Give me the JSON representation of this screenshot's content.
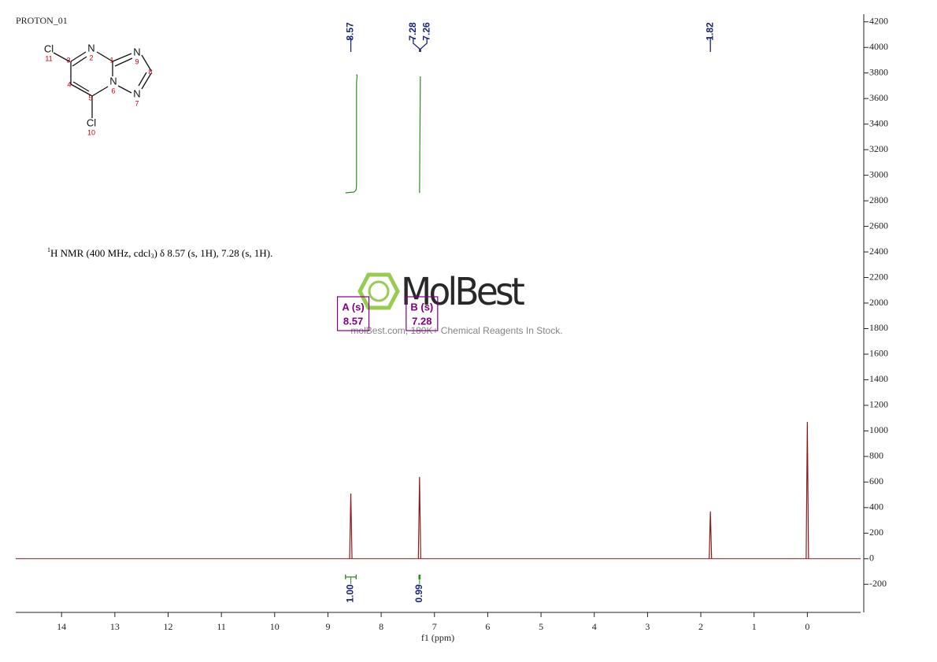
{
  "chart_data": {
    "type": "nmr",
    "title": "PROTON_01",
    "xlabel": "f1 (ppm)",
    "xlim": [
      14.86,
      -1.0
    ],
    "xticks": [
      14,
      13,
      12,
      11,
      10,
      9,
      8,
      7,
      6,
      5,
      4,
      3,
      2,
      1,
      0
    ],
    "ylim": [
      -420,
      4260
    ],
    "yticks": [
      4200,
      4000,
      3800,
      3600,
      3400,
      3200,
      3000,
      2800,
      2600,
      2400,
      2200,
      2000,
      1800,
      1600,
      1400,
      1200,
      1000,
      800,
      600,
      400,
      200,
      0,
      -200
    ],
    "color": "#8b1a1a",
    "peaks": {
      "x": [
        8.57,
        7.28,
        1.82,
        0
      ],
      "values": [
        510,
        640,
        370,
        1070
      ]
    },
    "peak_picks": [
      8.57,
      7.28,
      7.26,
      1.82
    ],
    "integrals": [
      {
        "from": 8.67,
        "to": 8.47,
        "value": 1,
        "label": "1.00"
      },
      {
        "from": 7.29,
        "to": 7.27,
        "value": 0.99
      }
    ],
    "multiplets": [
      {
        "name": "A (s)",
        "shift": 8.57
      },
      {
        "name": "B (s)",
        "shift": 7.28
      }
    ],
    "description": {
      "sup": "1",
      "text1": "H NMR (400 MHz, cdcl",
      "sub": "3",
      "text2": ") δ 8.57 (s, 1H), 7.28 (s, 1H)."
    },
    "watermark": {
      "logo": "MolBest",
      "tagline": "molBest.com, 180K+ Chemical Reagents In Stock."
    }
  },
  "structure": {
    "atoms": [
      {
        "symbol": "Cl",
        "number": 11
      },
      {
        "number": 3
      },
      {
        "symbol": "N",
        "number": 2
      },
      {
        "number": 1
      },
      {
        "symbol": "N",
        "number": 9
      },
      {
        "number": 8
      },
      {
        "number": 4
      },
      {
        "symbol": "N",
        "number": 6
      },
      {
        "number": 5
      },
      {
        "symbol": "N",
        "number": 7
      },
      {
        "symbol": "Cl",
        "number": 10
      }
    ]
  }
}
